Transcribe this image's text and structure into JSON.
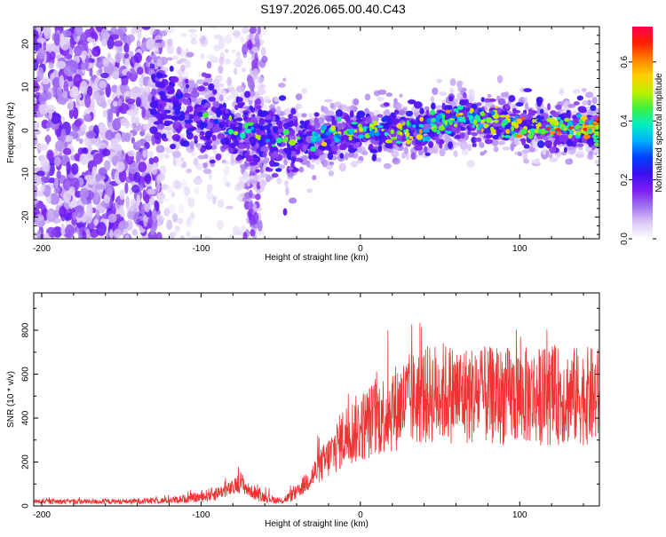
{
  "title": "S197.2026.065.00.40.C43",
  "chart_data": [
    {
      "type": "heatmap",
      "xlabel": "Height of straight line (km)",
      "ylabel": "Frequency (Hz)",
      "xlim": [
        -205,
        150
      ],
      "ylim": [
        -25,
        24
      ],
      "xticks": [
        -200,
        -100,
        0,
        100
      ],
      "yticks": [
        -20,
        -10,
        0,
        10,
        20
      ],
      "colorbar": {
        "label": "Normalized spectral amplitude",
        "range": [
          0.0,
          0.72
        ],
        "ticks": [
          "0.0",
          "0.2",
          "0.4",
          "0.6"
        ],
        "tick_values": [
          0.0,
          0.2,
          0.4,
          0.6
        ],
        "colormap": [
          "#ffffff",
          "#dcc8f5",
          "#a070f0",
          "#7a1cf0",
          "#3a10f0",
          "#0040ff",
          "#00b0ff",
          "#00f0c0",
          "#40f040",
          "#c0f000",
          "#ffd000",
          "#ff8000",
          "#ff2000",
          "#ff0050"
        ]
      },
      "ridge": [
        {
          "x": -130,
          "freq": 7
        },
        {
          "x": -100,
          "freq": 3
        },
        {
          "x": -60,
          "freq": -2
        },
        {
          "x": -30,
          "freq": -2
        },
        {
          "x": 0,
          "freq": 0
        },
        {
          "x": 40,
          "freq": 0
        },
        {
          "x": 60,
          "freq": 3
        },
        {
          "x": 100,
          "freq": 1
        },
        {
          "x": 150,
          "freq": 0
        }
      ]
    },
    {
      "type": "line",
      "xlabel": "Height of straight line (km)",
      "ylabel": "SNR (10 * v/v)",
      "xlim": [
        -205,
        150
      ],
      "ylim": [
        0,
        970
      ],
      "xticks": [
        -200,
        -100,
        0,
        100
      ],
      "yticks": [
        0,
        200,
        400,
        600,
        800
      ],
      "series": [
        {
          "name": "SNR",
          "color": "#ee3333",
          "x": [
            -205,
            -150,
            -120,
            -100,
            -90,
            -80,
            -75,
            -70,
            -60,
            -50,
            -40,
            -30,
            -20,
            -10,
            0,
            10,
            20,
            30,
            40,
            50,
            60,
            80,
            100,
            120,
            150
          ],
          "y": [
            20,
            20,
            25,
            40,
            60,
            80,
            110,
            70,
            40,
            20,
            60,
            140,
            220,
            320,
            360,
            400,
            440,
            480,
            500,
            520,
            510,
            500,
            500,
            500,
            500
          ]
        }
      ]
    }
  ]
}
